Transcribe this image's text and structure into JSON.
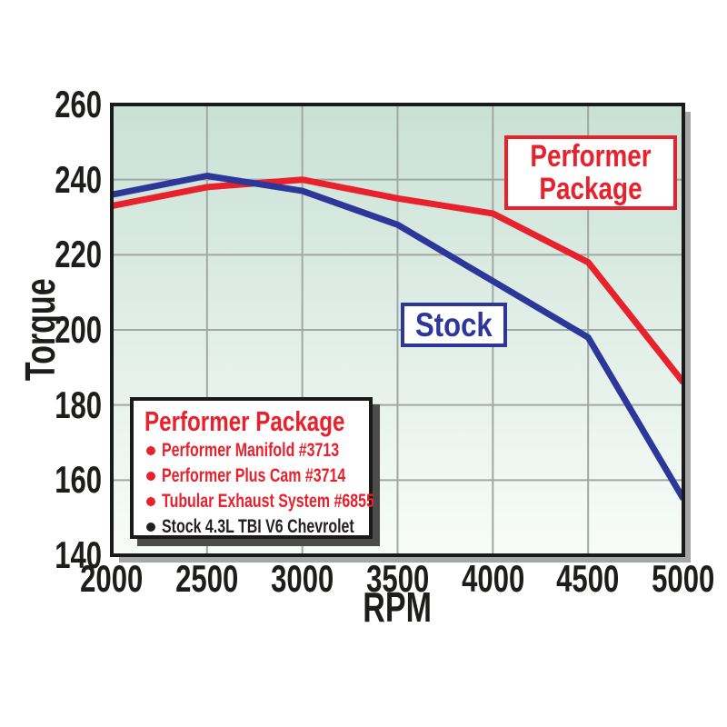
{
  "chart_data": {
    "type": "line",
    "xlabel": "RPM",
    "ylabel": "Torque",
    "x": [
      2000,
      2500,
      3000,
      3500,
      4000,
      4500,
      5000
    ],
    "x_ticks": [
      "2000",
      "2500",
      "3000",
      "3500",
      "4000",
      "4500",
      "5000"
    ],
    "y_ticks": [
      "260",
      "240",
      "220",
      "200",
      "180",
      "160",
      "140"
    ],
    "xlim": [
      2000,
      5000
    ],
    "ylim": [
      140,
      260
    ],
    "grid": true,
    "legend_position": "inside-bottom-left",
    "series": [
      {
        "name": "Performer Package",
        "color": "#e8212d",
        "values": [
          233,
          238,
          240,
          235,
          231,
          218,
          186
        ]
      },
      {
        "name": "Stock",
        "color": "#2d3699",
        "values": [
          236,
          241,
          237,
          228,
          213,
          198,
          155
        ]
      }
    ],
    "plot_background_top": "#c9e1d5",
    "plot_background_bottom": "#f8fcf9",
    "gridline_color": "#a0a8a4",
    "axis_color": "#1a1a1a",
    "shadow_color": "#a5a8a6"
  },
  "annotations": {
    "performer_label": "Performer Package",
    "stock_label": "Stock"
  },
  "legend": {
    "title": "Performer Package",
    "title_color": "#e8212d",
    "items": [
      {
        "label": "Performer Manifold #3713",
        "color": "#e8212d"
      },
      {
        "label": "Performer Plus Cam #3714",
        "color": "#e8212d"
      },
      {
        "label": "Tubular Exhaust System #6855",
        "color": "#e8212d"
      },
      {
        "label": "Stock 4.3L TBI V6 Chevrolet",
        "color": "#231f20"
      }
    ]
  }
}
